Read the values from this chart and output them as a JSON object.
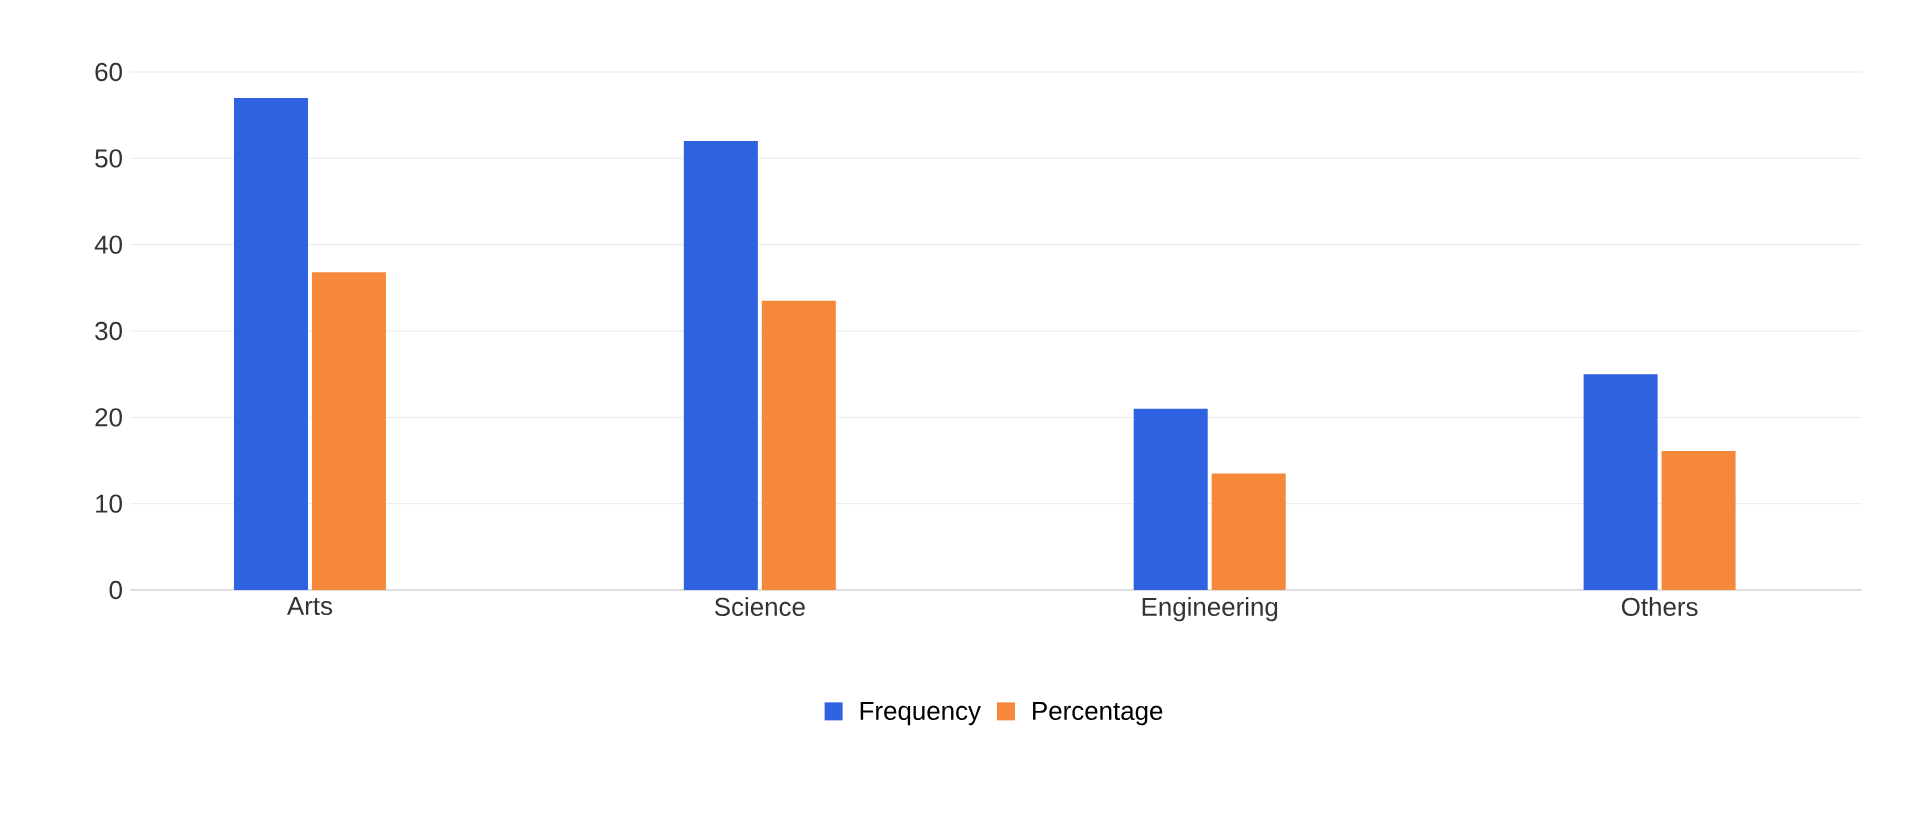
{
  "chart_data": {
    "type": "bar",
    "categories": [
      "Arts",
      "Science",
      "Engineering",
      "Others"
    ],
    "series": [
      {
        "name": "Frequency",
        "color": "#2f62e0",
        "values": [
          57,
          52,
          21,
          25
        ]
      },
      {
        "name": "Percentage",
        "color": "#f5883a",
        "values": [
          36.8,
          33.5,
          13.5,
          16.1
        ]
      }
    ],
    "ylim": [
      0,
      60
    ],
    "yticks": [
      0,
      10,
      20,
      30,
      40,
      50,
      60
    ],
    "grid": "y",
    "legend": "bottom"
  }
}
